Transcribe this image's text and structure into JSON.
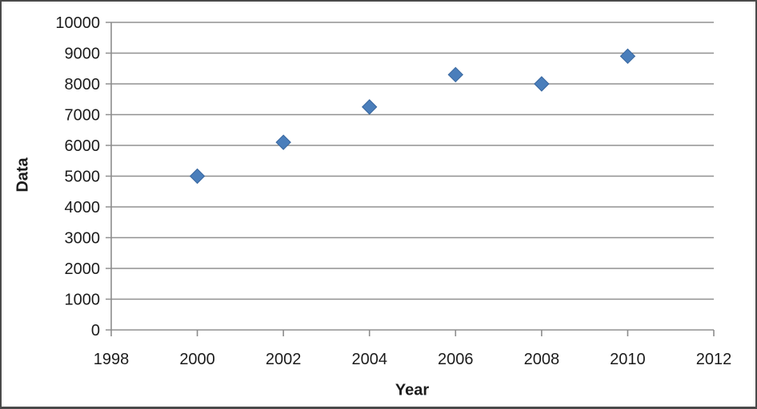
{
  "chart_data": {
    "type": "scatter",
    "xlabel": "Year",
    "ylabel": "Data",
    "x": [
      2000,
      2002,
      2004,
      2006,
      2008,
      2010
    ],
    "y": [
      5000,
      6100,
      7250,
      8300,
      8000,
      8900
    ],
    "xlim": [
      1998,
      2012
    ],
    "ylim": [
      0,
      10000
    ],
    "x_ticks": [
      1998,
      2000,
      2002,
      2004,
      2006,
      2008,
      2010,
      2012
    ],
    "y_ticks": [
      0,
      1000,
      2000,
      3000,
      4000,
      5000,
      6000,
      7000,
      8000,
      9000,
      10000
    ],
    "grid": "horizontal-only",
    "legend": "none",
    "marker": "diamond",
    "colors": {
      "marker_fill": "#4a7ebb",
      "marker_border": "#38669e",
      "gridline": "#909090",
      "axis": "#8c8c8c",
      "text": "#1c1c1c",
      "frame_border": "#4a4a4a",
      "background": "#ffffff"
    }
  }
}
